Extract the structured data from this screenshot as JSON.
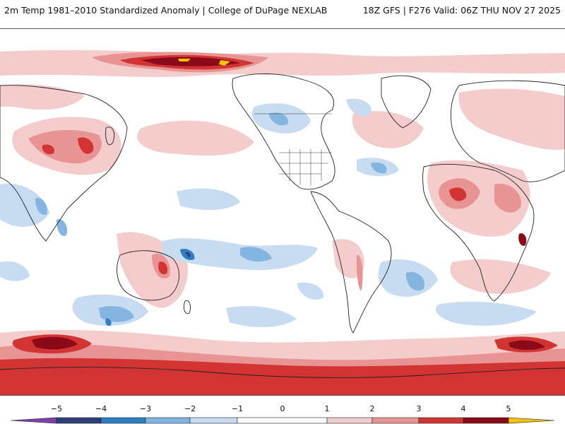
{
  "header": {
    "title": "2m Temp 1981–2010 Standardized Anomaly | College of DuPage NEXLAB",
    "model_info": "18Z GFS | F276 Valid: 06Z THU NOV 27 2025"
  },
  "legend": {
    "ticks": [
      "−5",
      "−4",
      "−3",
      "−2",
      "−1",
      "0",
      "1",
      "2",
      "3",
      "4",
      "5"
    ],
    "colors": {
      "lt_m5": "#7b3fb0",
      "m5_m4": "#2e3f7a",
      "m4_m3": "#2f7fc4",
      "m3_m2": "#84b5e0",
      "m2_m1": "#c7dcf0",
      "m1_p1": "#ffffff",
      "p1_p2": "#f5cccc",
      "p2_p3": "#e89494",
      "p3_p4": "#d23434",
      "p4_p5": "#8b0a1a",
      "gt_p5": "#f5c400"
    }
  },
  "map": {
    "projection": "global equirectangular (Pacific-centered)",
    "field": "standardized 2m temperature anomaly"
  }
}
